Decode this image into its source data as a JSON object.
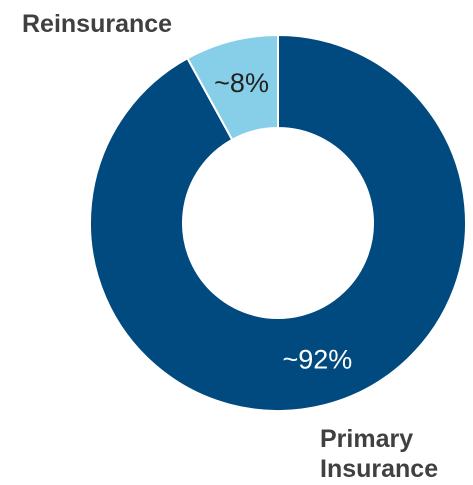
{
  "chart_data": {
    "type": "pie",
    "donut": true,
    "slices": [
      {
        "name": "Reinsurance",
        "value": 8,
        "label": "~8%",
        "color": "#87cfe8"
      },
      {
        "name": "Primary Insurance",
        "value": 92,
        "label": "~92%",
        "color": "#004a80"
      }
    ],
    "category_labels": {
      "reinsurance": "Reinsurance",
      "primary_line1": "Primary",
      "primary_line2": "Insurance"
    },
    "legend": "none"
  }
}
